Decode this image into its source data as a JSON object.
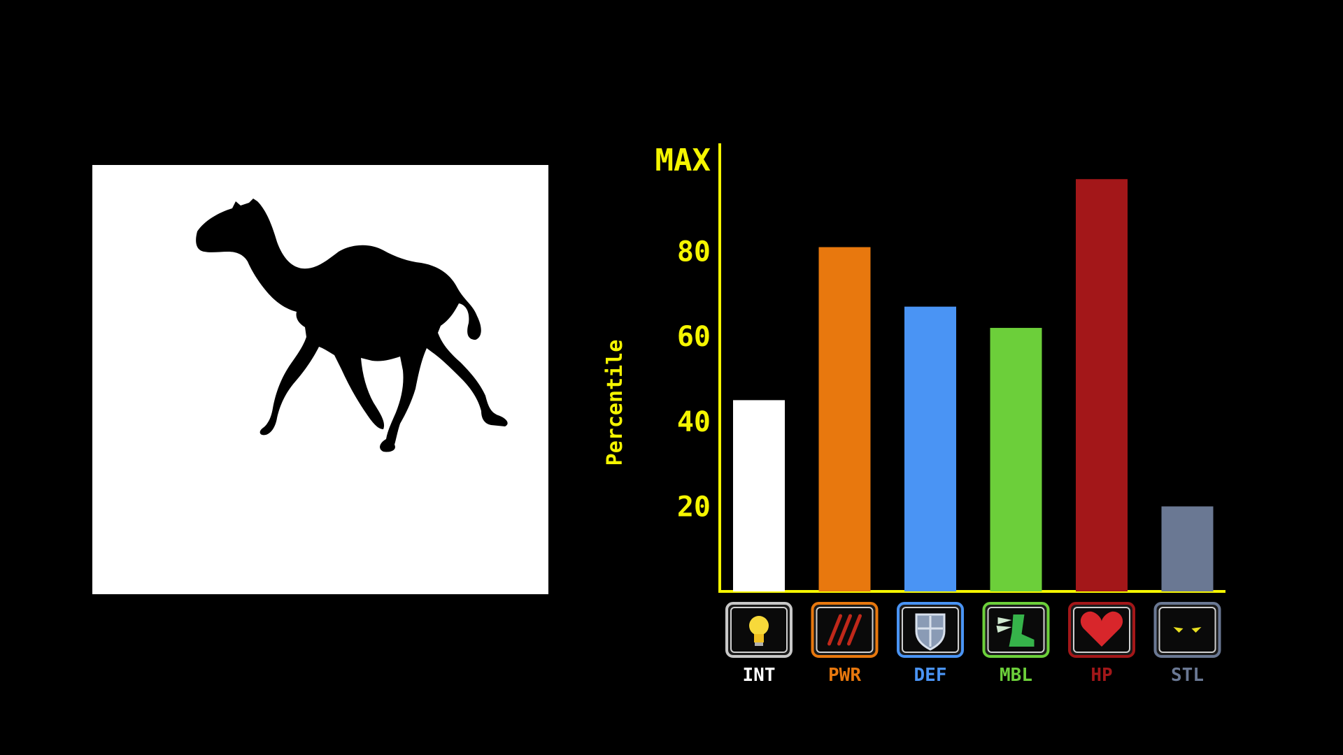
{
  "silhouette": {
    "icon": "camel-silhouette-icon"
  },
  "chart_data": {
    "type": "bar",
    "ylabel": "Percentile",
    "ylim": [
      0,
      100
    ],
    "y_ticks": [
      {
        "value": 20,
        "label": "20"
      },
      {
        "value": 40,
        "label": "40"
      },
      {
        "value": 60,
        "label": "60"
      },
      {
        "value": 80,
        "label": "80"
      },
      {
        "value": 100,
        "label": "MAX"
      }
    ],
    "categories": [
      "INT",
      "PWR",
      "DEF",
      "MBL",
      "HP",
      "STL"
    ],
    "values": [
      45,
      81,
      67,
      62,
      97,
      20
    ],
    "bar_colors": [
      "#ffffff",
      "#e8780e",
      "#4a94f4",
      "#6ccf3a",
      "#a31719",
      "#6a7893"
    ],
    "label_colors": [
      "#ffffff",
      "#e8780e",
      "#4a94f4",
      "#6ccf3a",
      "#a31719",
      "#6a7893"
    ],
    "icons": [
      "lightbulb-icon",
      "claw-marks-icon",
      "shield-icon",
      "winged-boot-icon",
      "heart-icon",
      "glowing-eyes-icon"
    ],
    "axis_color": "#f5f500",
    "text_color": "#f5f500",
    "grid": false
  }
}
